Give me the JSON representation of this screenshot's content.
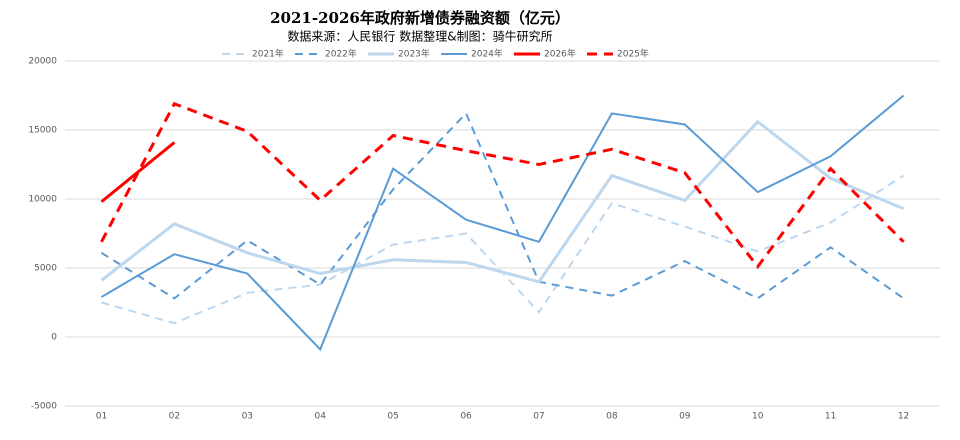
{
  "chart_data": {
    "type": "line",
    "title": "2021-2026年政府新增债券融资额（亿元）",
    "subtitle": "数据来源：人民银行 数据整理&制图：骑牛研究所",
    "categories": [
      "01",
      "02",
      "03",
      "04",
      "05",
      "06",
      "07",
      "08",
      "09",
      "10",
      "11",
      "12"
    ],
    "ylim": [
      -5000,
      20000
    ],
    "yticks": [
      -5000,
      0,
      5000,
      10000,
      15000,
      20000
    ],
    "grid": true,
    "legend": "top",
    "series": [
      {
        "name": "2021年",
        "color": "#bdd7ee",
        "dashed": true,
        "values": [
          2500,
          1000,
          3200,
          3800,
          6700,
          7500,
          1800,
          9700,
          8000,
          6200,
          8300,
          11700
        ]
      },
      {
        "name": "2022年",
        "color": "#5b9bd5",
        "dashed": true,
        "values": [
          6100,
          2800,
          7000,
          3800,
          10700,
          16200,
          4000,
          3000,
          5500,
          2800,
          6500,
          2800
        ]
      },
      {
        "name": "2023年",
        "color": "#bdd7ee",
        "dashed": false,
        "values": [
          4100,
          8200,
          6100,
          4600,
          5600,
          5400,
          4000,
          11700,
          9900,
          15600,
          11500,
          9300
        ]
      },
      {
        "name": "2024年",
        "color": "#5b9bd5",
        "dashed": false,
        "values": [
          2900,
          6000,
          4600,
          -900,
          12200,
          8500,
          6900,
          16200,
          15400,
          10500,
          13100,
          17500
        ]
      },
      {
        "name": "2026年",
        "color": "#ff0000",
        "dashed": false,
        "values": [
          9800,
          14100,
          null,
          null,
          null,
          null,
          null,
          null,
          null,
          null,
          null,
          null
        ]
      },
      {
        "name": "2025年",
        "color": "#ff0000",
        "dashed": true,
        "values": [
          6900,
          16900,
          14900,
          9900,
          14600,
          13500,
          12500,
          13600,
          11900,
          5100,
          12200,
          6900
        ]
      }
    ]
  }
}
